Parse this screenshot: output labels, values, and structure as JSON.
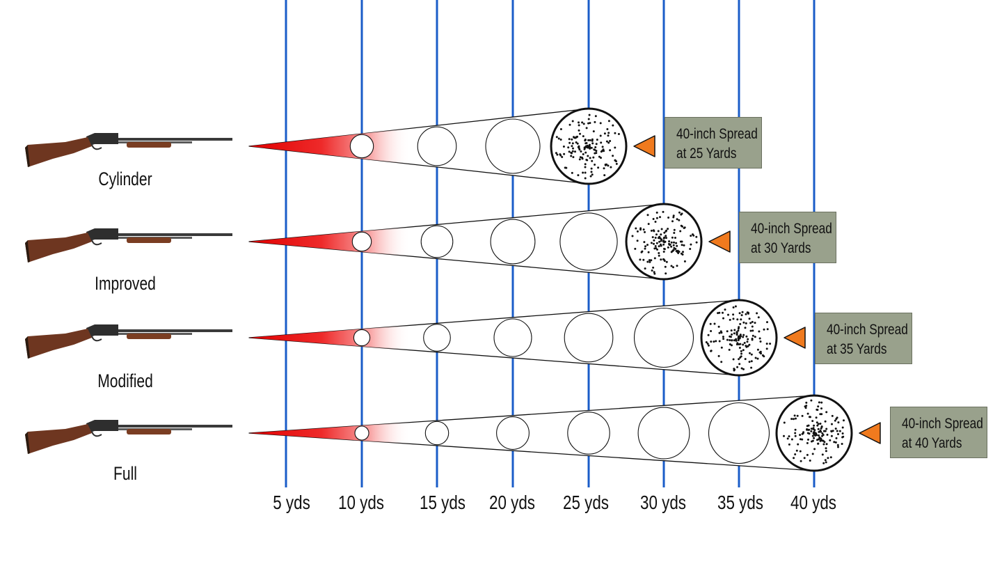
{
  "diagram": {
    "yard_marks": [
      "5 yds",
      "10 yds",
      "15 yds",
      "20 yds",
      "25 yds",
      "30 yds",
      "35 yds",
      "40 yds"
    ],
    "yard_values": [
      5,
      10,
      15,
      20,
      25,
      30,
      35,
      40
    ],
    "spread_inches": 40,
    "colors": {
      "gridline": "#1a5cc8",
      "cone_red": "#e00000",
      "pointer": "#f07a1e",
      "callout_bg": "#99a18c",
      "pellet": "#111111"
    },
    "chokes": [
      {
        "name": "Cylinder",
        "full_spread_yards": 25,
        "callout_line1": "40-inch Spread",
        "callout_line2": "at 25 Yards"
      },
      {
        "name": "Improved",
        "full_spread_yards": 30,
        "callout_line1": "40-inch Spread",
        "callout_line2": "at 30 Yards"
      },
      {
        "name": "Modified",
        "full_spread_yards": 35,
        "callout_line1": "40-inch Spread",
        "callout_line2": "at 35 Yards"
      },
      {
        "name": "Full",
        "full_spread_yards": 40,
        "callout_line1": "40-inch Spread",
        "callout_line2": "at 40 Yards"
      }
    ],
    "icons": {
      "gun": "shotgun-icon",
      "pointer": "orange-triangle-pointer-icon"
    }
  }
}
